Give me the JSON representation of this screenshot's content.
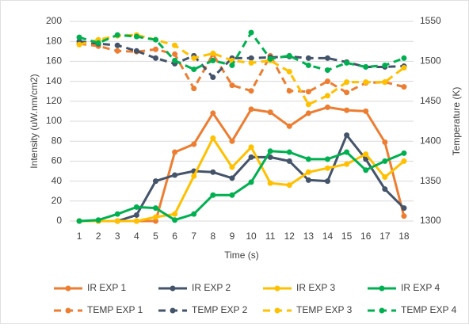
{
  "chart_data": {
    "type": "line",
    "x_label": "Time (s)",
    "y_label": "Intensity (uW.nm/cm2)",
    "y2_label": "Temperature (K)",
    "categories": [
      "1",
      "2",
      "3",
      "4",
      "5",
      "6",
      "7",
      "8",
      "9",
      "10",
      "11",
      "12",
      "13",
      "14",
      "15",
      "16",
      "17",
      "18"
    ],
    "ylim": [
      0,
      200
    ],
    "yticks": [
      0,
      20,
      40,
      60,
      80,
      100,
      120,
      140,
      160,
      180,
      200
    ],
    "y2lim": [
      1300,
      1550
    ],
    "y2ticks": [
      1300,
      1350,
      1400,
      1450,
      1500,
      1550
    ],
    "grid": true,
    "legend": "bottom",
    "series": [
      {
        "name": "IR EXP 1",
        "color": "#ed7d31",
        "dashed": false,
        "values": [
          0,
          0,
          0,
          0,
          0,
          69,
          77,
          108,
          80,
          112,
          109,
          95,
          108,
          114,
          111,
          110,
          79,
          5
        ]
      },
      {
        "name": "IR EXP 2",
        "color": "#44546a",
        "dashed": false,
        "values": [
          0,
          0,
          0,
          6,
          40,
          46,
          50,
          49,
          43,
          64,
          64,
          60,
          41,
          40,
          86,
          62,
          32,
          13
        ]
      },
      {
        "name": "IR EXP 3",
        "color": "#ffc000",
        "dashed": false,
        "values": [
          0,
          0,
          0,
          0,
          4,
          7,
          45,
          83,
          54,
          74,
          38,
          36,
          49,
          53,
          57,
          67,
          44,
          60
        ]
      },
      {
        "name": "IR EXP 4",
        "color": "#00b050",
        "dashed": false,
        "values": [
          0,
          1,
          7,
          14,
          13,
          1,
          7,
          26,
          26,
          39,
          70,
          69,
          62,
          62,
          69,
          51,
          60,
          68
        ]
      },
      {
        "name": "TEMP EXP 1",
        "color": "#ed7d31",
        "dashed": true,
        "axis": "y2",
        "values": [
          1522,
          1519,
          1513,
          1512,
          1515,
          1509,
          1466,
          1509,
          1470,
          1463,
          1507,
          1463,
          1462,
          1475,
          1461,
          1473,
          1474,
          1468
        ]
      },
      {
        "name": "TEMP EXP 2",
        "color": "#44546a",
        "dashed": true,
        "axis": "y2",
        "values": [
          1525,
          1522,
          1520,
          1513,
          1504,
          1497,
          1507,
          1480,
          1504,
          1504,
          1505,
          1506,
          1504,
          1504,
          1499,
          1493,
          1493,
          1494
        ]
      },
      {
        "name": "TEMP EXP 3",
        "color": "#ffc000",
        "dashed": true,
        "axis": "y2",
        "values": [
          1521,
          1527,
          1532,
          1533,
          1527,
          1520,
          1504,
          1510,
          1501,
          1498,
          1501,
          1487,
          1446,
          1457,
          1474,
          1474,
          1474,
          1492
        ]
      },
      {
        "name": "TEMP EXP 4",
        "color": "#00b050",
        "dashed": true,
        "axis": "y2",
        "values": [
          1530,
          1523,
          1533,
          1531,
          1527,
          1501,
          1490,
          1501,
          1495,
          1536,
          1503,
          1507,
          1495,
          1489,
          1498,
          1493,
          1495,
          1504
        ]
      }
    ]
  }
}
